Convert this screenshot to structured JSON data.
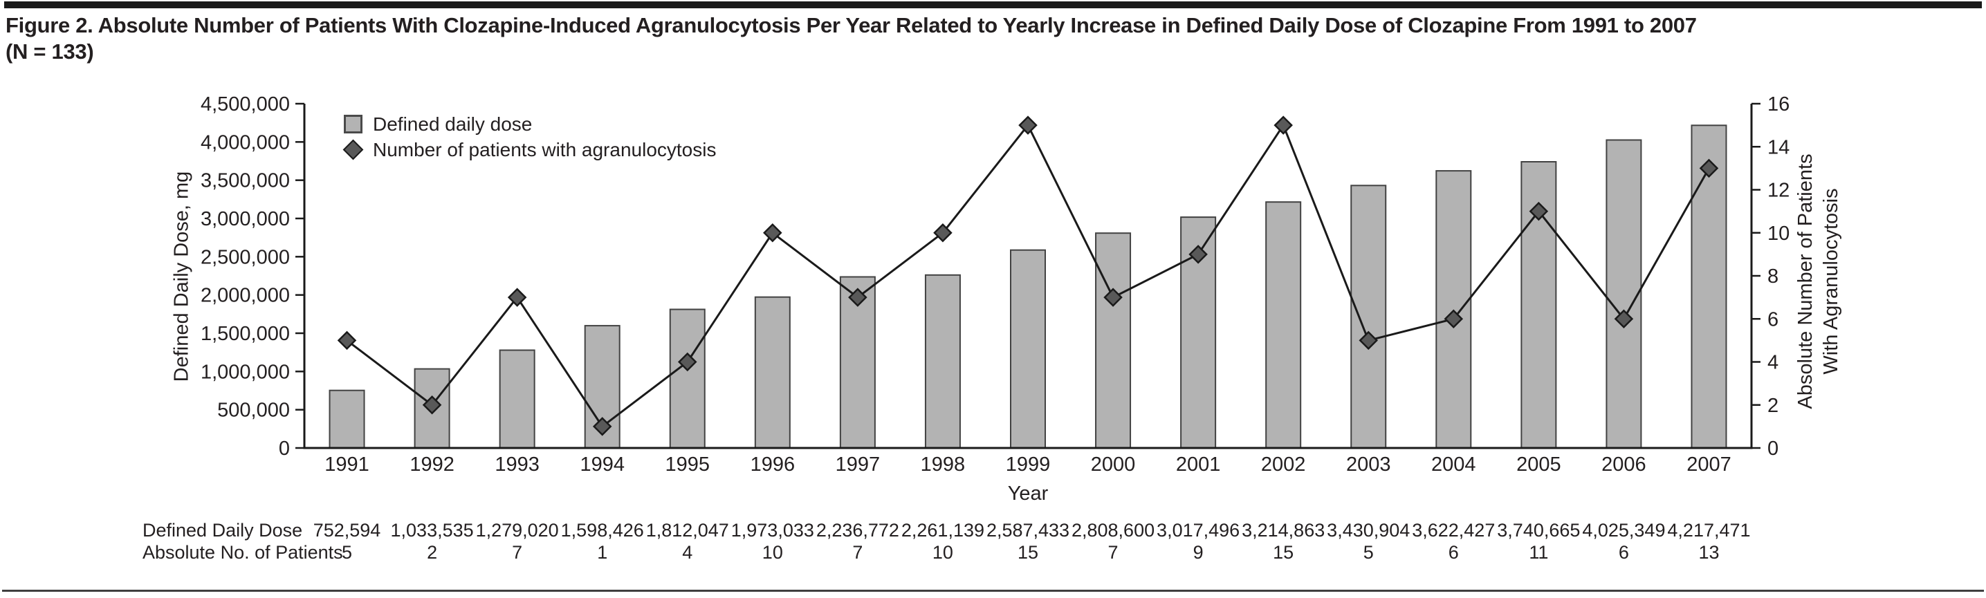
{
  "figure": {
    "title_line1": "Figure 2. Absolute Number of Patients With Clozapine-Induced Agranulocytosis Per Year Related to Yearly Increase in Defined Daily Dose of Clozapine From 1991 to 2007",
    "title_line2": "(N = 133)"
  },
  "legend": {
    "items": [
      {
        "label": "Defined daily dose",
        "marker": "square"
      },
      {
        "label": "Number of patients with agranulocytosis",
        "marker": "diamond"
      }
    ]
  },
  "chart_data": {
    "type": "bar",
    "categories": [
      "1991",
      "1992",
      "1993",
      "1994",
      "1995",
      "1996",
      "1997",
      "1998",
      "1999",
      "2000",
      "2001",
      "2002",
      "2003",
      "2004",
      "2005",
      "2006",
      "2007"
    ],
    "series": [
      {
        "name": "Defined daily dose",
        "type": "bar",
        "axis": "left",
        "values": [
          752594,
          1033535,
          1279020,
          1598426,
          1812047,
          1973033,
          2236772,
          2261139,
          2587433,
          2808600,
          3017496,
          3214863,
          3430904,
          3622427,
          3740665,
          4025349,
          4217471
        ]
      },
      {
        "name": "Number of patients with agranulocytosis",
        "type": "line",
        "marker": "diamond",
        "axis": "right",
        "values": [
          5,
          2,
          7,
          1,
          4,
          10,
          7,
          10,
          15,
          7,
          9,
          15,
          5,
          6,
          11,
          6,
          13
        ]
      }
    ],
    "xlabel": "Year",
    "left_axis": {
      "label": "Defined Daily Dose, mg",
      "min": 0,
      "max": 4500000,
      "step": 500000
    },
    "right_axis": {
      "label_line1": "Absolute Number of Patients",
      "label_line2": "With Agranulocytosis",
      "min": 0,
      "max": 16,
      "step": 2
    },
    "grid": false,
    "legend_position": "top-left-inside"
  },
  "table": {
    "row1_label": "Defined Daily Dose",
    "row2_label": "Absolute No. of Patients"
  },
  "colors": {
    "bar_fill": "#b3b3b3",
    "bar_stroke": "#424242",
    "line": "#1a1a1a",
    "diamond_fill": "#595959",
    "diamond_stroke": "#1a1a1a",
    "axis": "#1a1a1a",
    "text": "#231f20"
  }
}
